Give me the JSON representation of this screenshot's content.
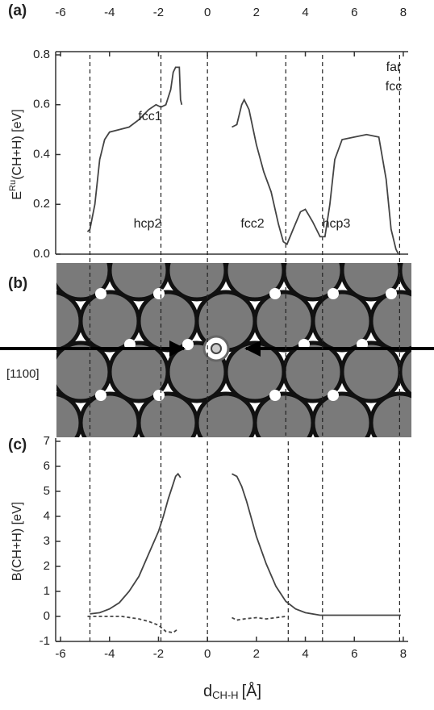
{
  "chart_data": [
    {
      "type": "line",
      "panel_label": "(a)",
      "ylabel": {
        "main": "E",
        "sup": "Ru",
        "rest": "(CH+H) [eV]"
      },
      "xlim": [
        -6.2,
        8.2
      ],
      "xticks": [
        -6,
        -4,
        -2,
        0,
        2,
        4,
        6,
        8
      ],
      "ylim": [
        0,
        0.8
      ],
      "yticks": [
        {
          "value": 0,
          "label": "0.0"
        },
        0.2,
        0.4,
        0.6,
        0.8
      ],
      "reference_lines": [
        -4.8,
        -1.9,
        0,
        3.2,
        4.7,
        7.85
      ],
      "annotations": [
        "fcc1",
        "hcp2",
        "fcc2",
        "hcp3",
        "far",
        "fcc"
      ],
      "series": [
        {
          "color": "#444",
          "dash": false,
          "x": [
            -4.9,
            -4.8,
            -4.6,
            -4.4,
            -4.2,
            -4.0,
            -3.6,
            -3.2,
            -2.8,
            -2.4,
            -2.1,
            -1.9,
            -1.7,
            -1.5,
            -1.4,
            -1.3,
            -1.15,
            -1.1,
            -1.05,
            0,
            1.0,
            1.2,
            1.4,
            1.5,
            1.7,
            2.0,
            2.3,
            2.6,
            2.9,
            3.1,
            3.25,
            3.5,
            3.8,
            4.0,
            4.3,
            4.6,
            4.8,
            5.0,
            5.2,
            5.5,
            6.0,
            6.5,
            7.0,
            7.3,
            7.5,
            7.7,
            7.8
          ],
          "values": [
            0.09,
            0.1,
            0.2,
            0.38,
            0.46,
            0.49,
            0.5,
            0.51,
            0.54,
            0.58,
            0.6,
            0.59,
            0.6,
            0.66,
            0.73,
            0.75,
            0.75,
            0.62,
            0.6,
            null,
            0.51,
            0.52,
            0.6,
            0.62,
            0.58,
            0.44,
            0.33,
            0.25,
            0.12,
            0.05,
            0.04,
            0.1,
            0.17,
            0.18,
            0.13,
            0.07,
            0.07,
            0.2,
            0.38,
            0.46,
            0.47,
            0.48,
            0.47,
            0.3,
            0.1,
            0.02,
            0.0
          ]
        }
      ]
    },
    {
      "type": "line",
      "panel_label": "(c)",
      "ylabel": "B(CH+H) [eV]",
      "xlabel": {
        "main": "d",
        "sub": "CH-H",
        "rest": "[Å]"
      },
      "xlim": [
        -6.2,
        8.2
      ],
      "xticks": [
        -6,
        -4,
        -2,
        0,
        2,
        4,
        6,
        8
      ],
      "ylim": [
        -1,
        7
      ],
      "yticks": [
        -1,
        0,
        1,
        2,
        3,
        4,
        5,
        6,
        7
      ],
      "reference_lines": [
        -4.8,
        -1.9,
        0,
        3.3,
        4.7,
        7.85
      ],
      "series": [
        {
          "color": "#444",
          "dash": false,
          "x": [
            -4.8,
            -4.4,
            -4.0,
            -3.6,
            -3.2,
            -2.8,
            -2.4,
            -2.0,
            -1.8,
            -1.6,
            -1.4,
            -1.3,
            -1.2,
            -1.1,
            0,
            1.0,
            1.2,
            1.4,
            1.6,
            1.8,
            2.0,
            2.4,
            2.8,
            3.2,
            3.6,
            4.0,
            4.6,
            5.5,
            7.0,
            7.9
          ],
          "values": [
            0.1,
            0.15,
            0.3,
            0.55,
            1.0,
            1.6,
            2.5,
            3.4,
            4.0,
            4.7,
            5.3,
            5.6,
            5.7,
            5.55,
            null,
            5.7,
            5.6,
            5.2,
            4.6,
            3.9,
            3.2,
            2.1,
            1.2,
            0.6,
            0.3,
            0.15,
            0.05,
            0.05,
            0.05,
            0.05
          ]
        },
        {
          "color": "#444",
          "dash": true,
          "x": [
            -4.9,
            -3.5,
            -2.8,
            -2.4,
            -2.0,
            -1.7,
            -1.4,
            -1.2,
            0,
            1.0,
            1.2,
            1.5,
            2.0,
            2.4,
            2.8,
            3.2
          ],
          "values": [
            0,
            0,
            -0.1,
            -0.2,
            -0.35,
            -0.6,
            -0.65,
            -0.5,
            null,
            -0.05,
            -0.15,
            -0.1,
            -0.05,
            -0.1,
            -0.05,
            0
          ]
        }
      ]
    }
  ],
  "panel_b": {
    "label": "(b)",
    "direction": "[1100]"
  }
}
